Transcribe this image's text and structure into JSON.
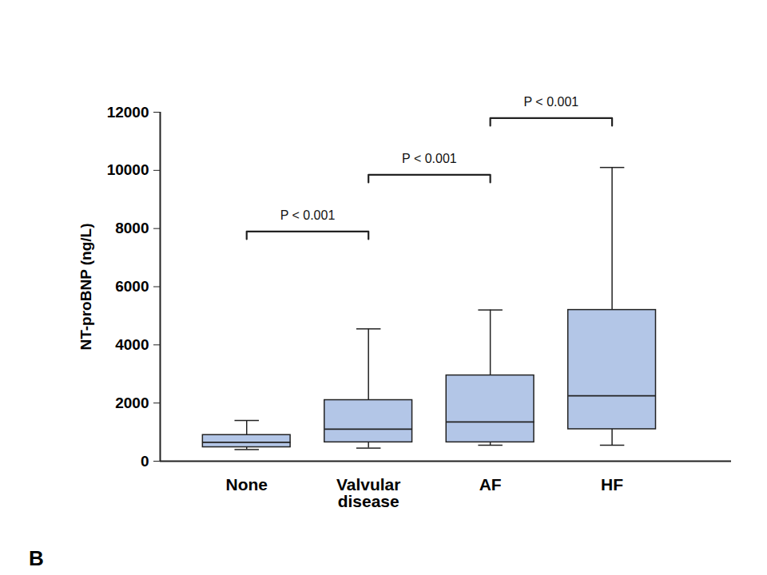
{
  "chart_data": {
    "type": "box",
    "categories": [
      "None",
      "Valvular disease",
      "AF",
      "HF"
    ],
    "whisker_low": [
      400,
      450,
      550,
      550
    ],
    "q1": [
      480,
      650,
      650,
      1100
    ],
    "median": [
      650,
      1100,
      1350,
      2250
    ],
    "q3": [
      900,
      2100,
      2950,
      5200
    ],
    "whisker_high": [
      1400,
      4550,
      5200,
      10100
    ],
    "ylabel": "NT-proBNP (ng/L)",
    "ylim": [
      0,
      12000
    ],
    "yticks": [
      0,
      2000,
      4000,
      6000,
      8000,
      10000,
      12000
    ],
    "color": "#b3c6e7",
    "annotations": [
      {
        "text": "P < 0.001",
        "from": "None",
        "to": "Valvular disease",
        "y": 7900
      },
      {
        "text": "P < 0.001",
        "from": "Valvular disease",
        "to": "AF",
        "y": 9850
      },
      {
        "text": "P < 0.001",
        "from": "AF",
        "to": "HF",
        "y": 11800
      }
    ],
    "panel_label": "B"
  }
}
